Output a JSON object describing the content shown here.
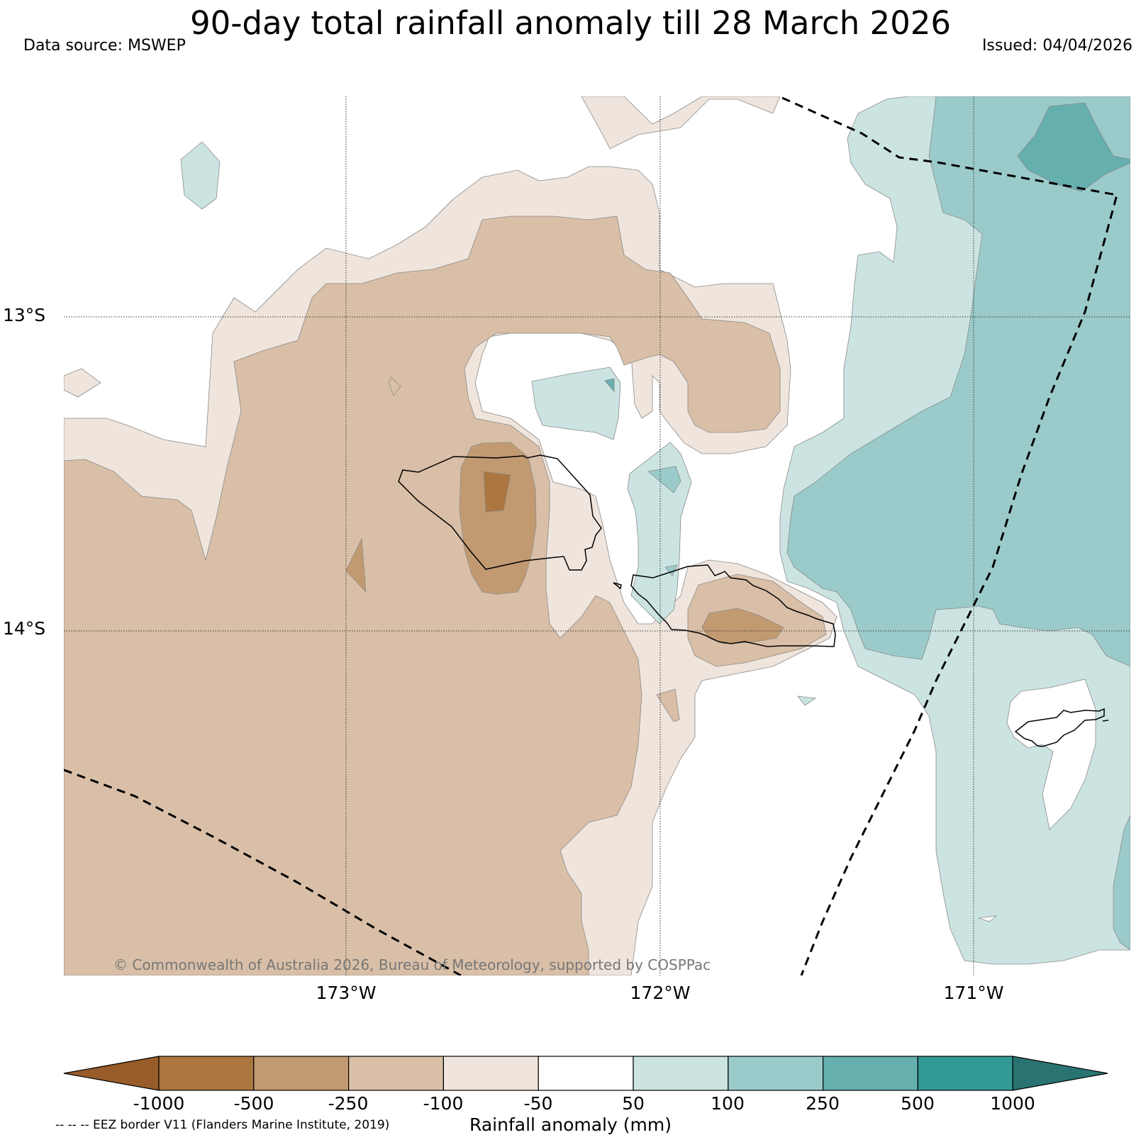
{
  "header": {
    "title": "90-day total rainfall anomaly till 28 March 2026",
    "data_source": "Data source: MSWEP",
    "issued": "Issued: 04/04/2026"
  },
  "map": {
    "longitude_labels": [
      "173°W",
      "172°W",
      "171°W"
    ],
    "latitude_labels": [
      "13°S",
      "14°S"
    ],
    "credit": "© Commonwealth of Australia 2026, Bureau of Meteorology, supported by COSPPac"
  },
  "colorbar": {
    "title": "Rainfall anomaly (mm)",
    "tick_labels": [
      "-1000",
      "-500",
      "-250",
      "-100",
      "-50",
      "50",
      "100",
      "250",
      "500",
      "1000"
    ],
    "colors": [
      "#975c29",
      "#ab763f",
      "#c29a71",
      "#d9bfa7",
      "#efe5dc",
      "#ffffff",
      "#cbe4e2",
      "#9acbca",
      "#65afaf",
      "#339995",
      "#297472"
    ]
  },
  "legend": {
    "eez_note": "-- -- -- EEZ border V11 (Flanders Marine Institute, 2019)"
  }
}
